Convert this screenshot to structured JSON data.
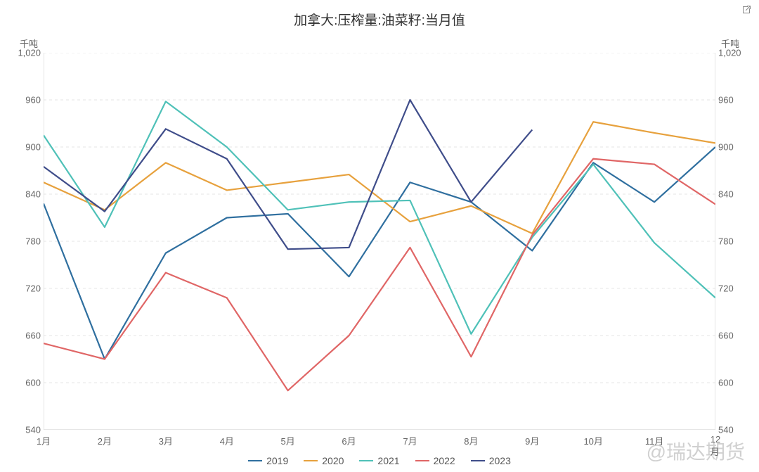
{
  "title": "加拿大:压榨量:油菜籽:当月值",
  "y_axis_label": "千吨",
  "watermark": "@瑞达期货",
  "chart": {
    "type": "line",
    "categories": [
      "1月",
      "2月",
      "3月",
      "4月",
      "5月",
      "6月",
      "7月",
      "8月",
      "9月",
      "10月",
      "11月",
      "12月"
    ],
    "ylim": [
      540,
      1020
    ],
    "ytick_step": 60,
    "yticks": [
      540,
      600,
      660,
      720,
      780,
      840,
      900,
      960,
      1020
    ],
    "grid_color": "#e6e6e6",
    "axis_color": "#cccccc",
    "tick_color": "#bbbbbb",
    "background_color": "#ffffff",
    "text_color": "#666666",
    "title_color": "#333333",
    "title_fontsize": 19,
    "label_fontsize": 13,
    "tick_fontsize": 13,
    "legend_fontsize": 14,
    "line_width": 2.2,
    "series": [
      {
        "name": "2019",
        "color": "#2f6f9f",
        "values": [
          828,
          630,
          765,
          810,
          815,
          735,
          855,
          830,
          768,
          880,
          830,
          900
        ]
      },
      {
        "name": "2020",
        "color": "#e7a13d",
        "values": [
          855,
          820,
          880,
          845,
          855,
          865,
          805,
          825,
          790,
          932,
          918,
          905
        ]
      },
      {
        "name": "2021",
        "color": "#4fc1b8",
        "values": [
          915,
          798,
          958,
          900,
          820,
          830,
          832,
          662,
          785,
          878,
          778,
          708
        ]
      },
      {
        "name": "2022",
        "color": "#e06666",
        "values": [
          650,
          630,
          740,
          708,
          590,
          660,
          772,
          633,
          788,
          885,
          878,
          827
        ]
      },
      {
        "name": "2023",
        "color": "#3f4d8a",
        "values": [
          875,
          818,
          923,
          885,
          770,
          772,
          960,
          830,
          922,
          null,
          null,
          null
        ]
      }
    ]
  },
  "legend_labels": [
    "2019",
    "2020",
    "2021",
    "2022",
    "2023"
  ]
}
